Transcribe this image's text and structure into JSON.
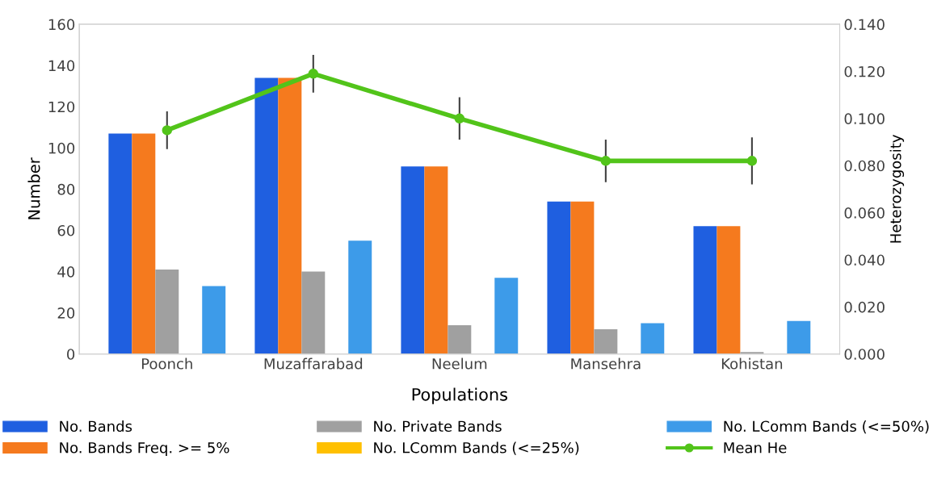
{
  "chart_data": {
    "type": "bar",
    "xlabel": "Populations",
    "ylabel": "Number",
    "y2label": "Heterozygosity",
    "categories": [
      "Poonch",
      "Muzaffarabad",
      "Neelum",
      "Mansehra",
      "Kohistan"
    ],
    "series": [
      {
        "name": "No. Bands",
        "color": "#1f5fe0",
        "values": [
          107,
          134,
          91,
          74,
          62
        ]
      },
      {
        "name": "No. Bands Freq. >= 5%",
        "color": "#f57a1e",
        "values": [
          107,
          134,
          91,
          74,
          62
        ]
      },
      {
        "name": "No. Private Bands",
        "color": "#a0a0a0",
        "values": [
          41,
          40,
          14,
          12,
          1
        ]
      },
      {
        "name": "No. LComm Bands (<=25%)",
        "color": "#ffc000",
        "values": [
          0,
          0,
          0,
          0,
          0
        ]
      },
      {
        "name": "No. LComm Bands (<=50%)",
        "color": "#3d9be9",
        "values": [
          33,
          55,
          37,
          15,
          16
        ]
      },
      {
        "name": "Mean He",
        "type": "line",
        "axis": "y2",
        "color": "#52c41a",
        "marker": "circle",
        "values": [
          0.095,
          0.119,
          0.1,
          0.082,
          0.082
        ],
        "errors": [
          0.008,
          0.008,
          0.009,
          0.009,
          0.01
        ]
      }
    ],
    "ylim": [
      0,
      160
    ],
    "yticks": [
      0,
      20,
      40,
      60,
      80,
      100,
      120,
      140,
      160
    ],
    "y2lim": [
      0,
      0.14
    ],
    "y2ticks": [
      {
        "value": 0,
        "label": "0.000"
      },
      {
        "value": 0.02,
        "label": "0.020"
      },
      {
        "value": 0.04,
        "label": "0.040"
      },
      {
        "value": 0.06,
        "label": "0.060"
      },
      {
        "value": 0.08,
        "label": "0.080"
      },
      {
        "value": 0.1,
        "label": "0.100"
      },
      {
        "value": 0.12,
        "label": "0.120"
      },
      {
        "value": 0.14,
        "label": "0.140"
      }
    ],
    "grid": false,
    "legend": "bottom"
  }
}
